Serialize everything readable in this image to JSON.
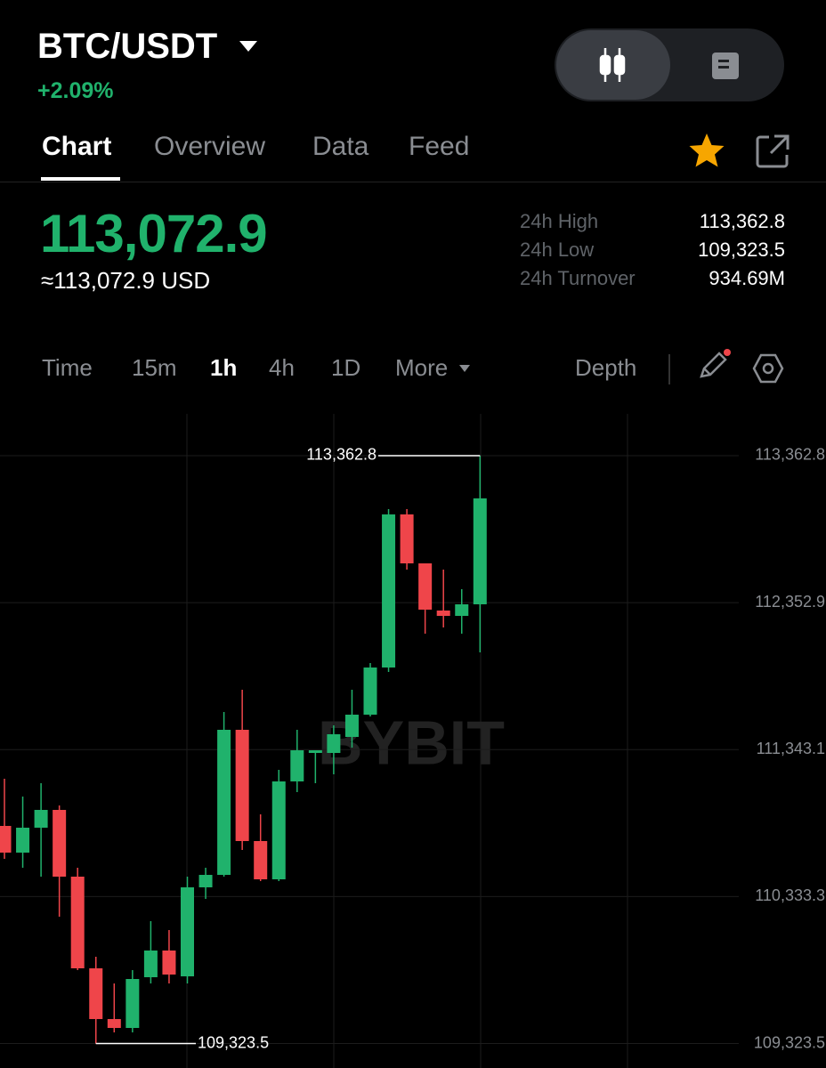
{
  "header": {
    "pair": "BTC/USDT",
    "change": "+2.09%"
  },
  "tabs": [
    "Chart",
    "Overview",
    "Data",
    "Feed"
  ],
  "price": "113,072.9",
  "price_usd": "≈113,072.9 USD",
  "stats": [
    {
      "label": "24h High",
      "value": "113,362.8"
    },
    {
      "label": "24h Low",
      "value": "109,323.5"
    },
    {
      "label": "24h Turnover",
      "value": "934.69M"
    }
  ],
  "toolbar": [
    "Time",
    "15m",
    "1h",
    "4h",
    "1D",
    "More"
  ],
  "depth": "Depth",
  "chart_data": {
    "type": "candlestick",
    "watermark": "BYBIT",
    "up_color": "#20b26c",
    "down_color": "#ef454a",
    "ylim": [
      109155.7,
      113650.2
    ],
    "yticks": [
      {
        "value": 113362.8,
        "label": "113,362.8"
      },
      {
        "value": 112352.9,
        "label": "112,352.9"
      },
      {
        "value": 111343.1,
        "label": "111,343.1"
      },
      {
        "value": 110333.3,
        "label": "110,333.3"
      },
      {
        "value": 109323.5,
        "label": "109,323.5"
      }
    ],
    "high_label": "113,362.8",
    "low_label": "109,323.5",
    "open": [
      110819.0,
      110635.5,
      110806.7,
      110929.0,
      110470.4,
      109840.6,
      109492.0,
      109430.9,
      109779.4,
      109962.9,
      109785.5,
      110397.0,
      110482.6,
      111479.4,
      110715.0,
      110452.1,
      111124.7,
      111320.4,
      111320.4,
      111430.5,
      111583.3,
      111907.4,
      112959.2,
      112622.9,
      112298.8,
      112262.1,
      112341.6
    ],
    "high": [
      111143.1,
      111020.8,
      111112.5,
      110959.6,
      110531.6,
      109920.1,
      109736.6,
      109828.3,
      110164.7,
      110103.5,
      110470.4,
      110531.6,
      111601.7,
      111754.6,
      110898.5,
      111204.2,
      111479.4,
      111338.7,
      111510.0,
      111754.6,
      111938.0,
      112995.9,
      112995.9,
      112622.9,
      112580.1,
      112445.5,
      113362.8
    ],
    "low": [
      110592.7,
      110531.6,
      110470.4,
      110195.2,
      109828.3,
      109323.5,
      109400.3,
      109400.3,
      109736.6,
      109736.6,
      109736.6,
      110317.5,
      110470.4,
      110653.9,
      110439.8,
      110439.8,
      111051.3,
      111112.5,
      111173.6,
      111357.1,
      111571.1,
      111876.9,
      112580.1,
      112139.8,
      112182.6,
      112139.8,
      112011.4
    ],
    "close": [
      110635.5,
      110806.7,
      110929.0,
      110470.4,
      109840.6,
      109492.0,
      109430.9,
      109767.2,
      109962.9,
      109797.8,
      110397.0,
      110482.6,
      111479.4,
      110715.0,
      110452.1,
      111124.7,
      111338.7,
      111338.7,
      111448.8,
      111583.3,
      111907.4,
      112959.2,
      112622.9,
      112304.9,
      112262.1,
      112341.6,
      113069.3
    ]
  }
}
